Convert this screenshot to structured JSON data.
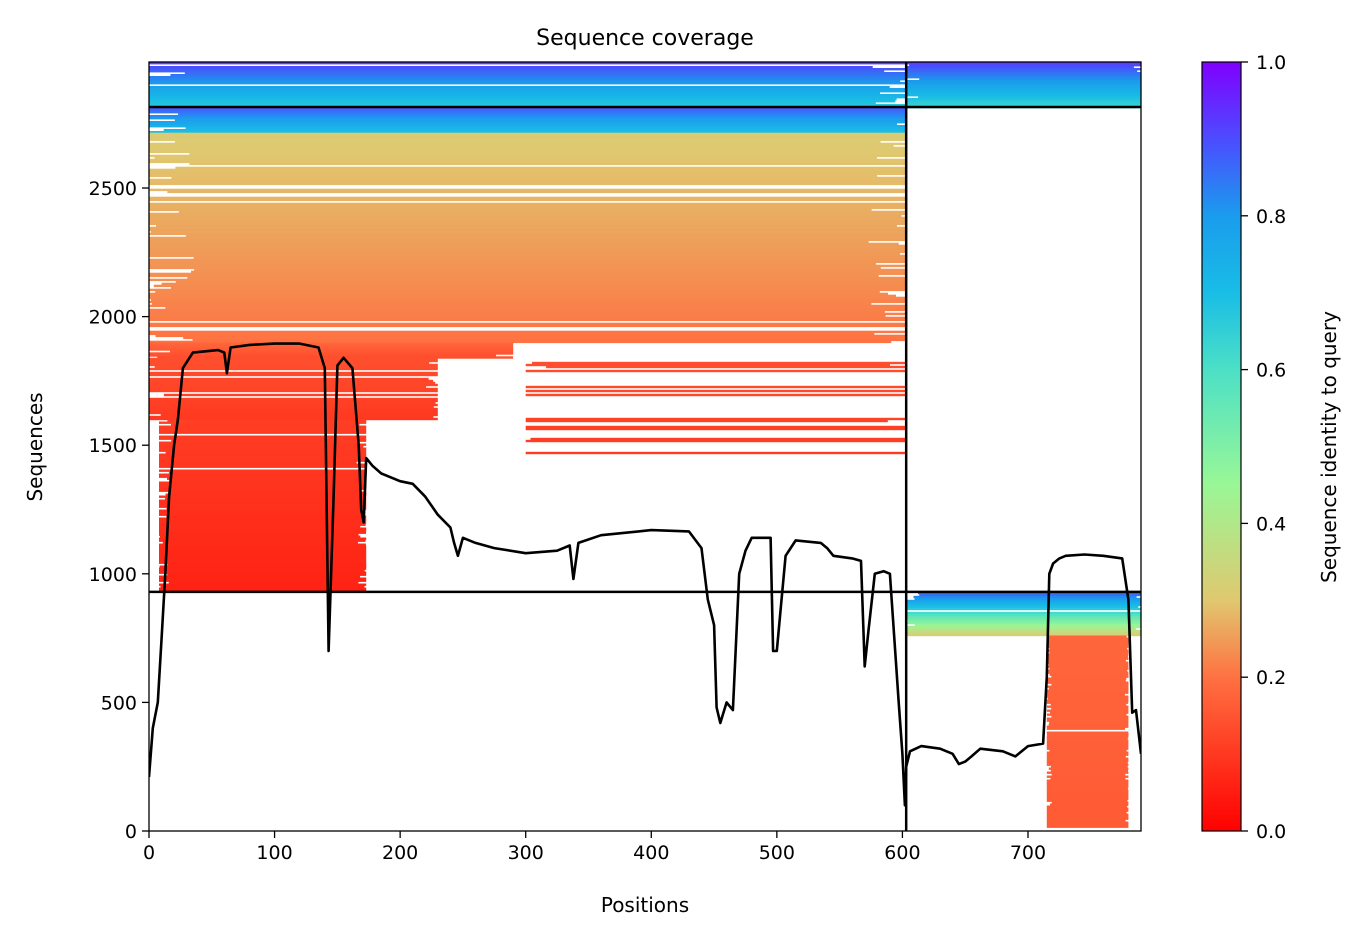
{
  "chart_data": {
    "type": "heatmap",
    "title": "Sequence coverage",
    "xlabel": "Positions",
    "ylabel": "Sequences",
    "xlim": [
      0,
      790
    ],
    "ylim": [
      0,
      2990
    ],
    "x_ticks": [
      0,
      100,
      200,
      300,
      400,
      500,
      600,
      700
    ],
    "y_ticks": [
      0,
      500,
      1000,
      1500,
      2000,
      2500
    ],
    "colorbar": {
      "label": "Sequence identity to query",
      "range": [
        0,
        1
      ],
      "ticks": [
        "0.0",
        "0.2",
        "0.4",
        "0.6",
        "0.8",
        "1.0"
      ],
      "colormap": "rainbow_r"
    },
    "grid": false,
    "chain_boundary_x": 603,
    "group_boundaries_y": [
      930,
      2815
    ],
    "coverage_blocks": [
      {
        "x0": 0,
        "x1": 603,
        "y0": 2815,
        "y1": 2990,
        "id_lo": 0.65,
        "id_hi": 0.92,
        "density": 0.96
      },
      {
        "x0": 0,
        "x1": 603,
        "y0": 2715,
        "y1": 2815,
        "id_lo": 0.68,
        "id_hi": 0.88,
        "density": 0.95
      },
      {
        "x0": 0,
        "x1": 603,
        "y0": 1900,
        "y1": 2715,
        "id_lo": 0.2,
        "id_hi": 0.31,
        "density": 0.93
      },
      {
        "x0": 0,
        "x1": 290,
        "y0": 1840,
        "y1": 1900,
        "id_lo": 0.13,
        "id_hi": 0.18,
        "density": 0.9
      },
      {
        "x0": 0,
        "x1": 230,
        "y0": 1600,
        "y1": 1840,
        "id_lo": 0.1,
        "id_hi": 0.14,
        "density": 0.8
      },
      {
        "x0": 8,
        "x1": 173,
        "y0": 930,
        "y1": 1600,
        "id_lo": 0.06,
        "id_hi": 0.11,
        "density": 0.95
      },
      {
        "x0": 300,
        "x1": 603,
        "y0": 1450,
        "y1": 1840,
        "id_lo": 0.1,
        "id_hi": 0.14,
        "density": 0.3
      },
      {
        "x0": 603,
        "x1": 790,
        "y0": 2815,
        "y1": 2990,
        "id_lo": 0.62,
        "id_hi": 0.92,
        "density": 0.95
      },
      {
        "x0": 603,
        "x1": 790,
        "y0": 760,
        "y1": 930,
        "id_lo": 0.3,
        "id_hi": 0.88,
        "density": 0.9
      },
      {
        "x0": 715,
        "x1": 780,
        "y0": 15,
        "y1": 760,
        "id_lo": 0.16,
        "id_hi": 0.18,
        "density": 0.97
      }
    ],
    "coverage_line": [
      [
        0,
        210
      ],
      [
        3,
        400
      ],
      [
        7,
        500
      ],
      [
        10,
        750
      ],
      [
        13,
        1000
      ],
      [
        16,
        1300
      ],
      [
        20,
        1500
      ],
      [
        23,
        1600
      ],
      [
        27,
        1800
      ],
      [
        35,
        1860
      ],
      [
        55,
        1870
      ],
      [
        60,
        1860
      ],
      [
        62,
        1780
      ],
      [
        65,
        1880
      ],
      [
        80,
        1890
      ],
      [
        100,
        1895
      ],
      [
        120,
        1895
      ],
      [
        135,
        1880
      ],
      [
        140,
        1800
      ],
      [
        143,
        700
      ],
      [
        147,
        1300
      ],
      [
        150,
        1810
      ],
      [
        155,
        1840
      ],
      [
        162,
        1800
      ],
      [
        167,
        1500
      ],
      [
        169,
        1250
      ],
      [
        171,
        1200
      ],
      [
        173,
        1450
      ],
      [
        178,
        1420
      ],
      [
        185,
        1390
      ],
      [
        200,
        1360
      ],
      [
        210,
        1350
      ],
      [
        220,
        1300
      ],
      [
        230,
        1230
      ],
      [
        240,
        1180
      ],
      [
        243,
        1120
      ],
      [
        246,
        1070
      ],
      [
        250,
        1140
      ],
      [
        260,
        1120
      ],
      [
        275,
        1100
      ],
      [
        300,
        1080
      ],
      [
        325,
        1090
      ],
      [
        335,
        1110
      ],
      [
        338,
        980
      ],
      [
        342,
        1120
      ],
      [
        360,
        1150
      ],
      [
        400,
        1170
      ],
      [
        430,
        1165
      ],
      [
        440,
        1100
      ],
      [
        445,
        900
      ],
      [
        450,
        800
      ],
      [
        452,
        480
      ],
      [
        455,
        420
      ],
      [
        460,
        500
      ],
      [
        465,
        470
      ],
      [
        470,
        1000
      ],
      [
        475,
        1090
      ],
      [
        480,
        1140
      ],
      [
        495,
        1140
      ],
      [
        497,
        700
      ],
      [
        500,
        700
      ],
      [
        503,
        860
      ],
      [
        507,
        1070
      ],
      [
        515,
        1130
      ],
      [
        535,
        1120
      ],
      [
        540,
        1100
      ],
      [
        545,
        1070
      ],
      [
        560,
        1060
      ],
      [
        567,
        1050
      ],
      [
        570,
        640
      ],
      [
        573,
        780
      ],
      [
        578,
        1000
      ],
      [
        585,
        1010
      ],
      [
        590,
        1000
      ],
      [
        597,
        500
      ],
      [
        600,
        300
      ],
      [
        602,
        100
      ],
      [
        603,
        250
      ],
      [
        606,
        310
      ],
      [
        615,
        330
      ],
      [
        630,
        320
      ],
      [
        640,
        300
      ],
      [
        645,
        260
      ],
      [
        650,
        270
      ],
      [
        655,
        290
      ],
      [
        662,
        320
      ],
      [
        680,
        310
      ],
      [
        690,
        290
      ],
      [
        700,
        330
      ],
      [
        712,
        340
      ],
      [
        715,
        600
      ],
      [
        717,
        1000
      ],
      [
        720,
        1040
      ],
      [
        725,
        1060
      ],
      [
        730,
        1070
      ],
      [
        745,
        1075
      ],
      [
        760,
        1070
      ],
      [
        775,
        1060
      ],
      [
        780,
        900
      ],
      [
        783,
        460
      ],
      [
        786,
        470
      ],
      [
        790,
        300
      ]
    ]
  }
}
